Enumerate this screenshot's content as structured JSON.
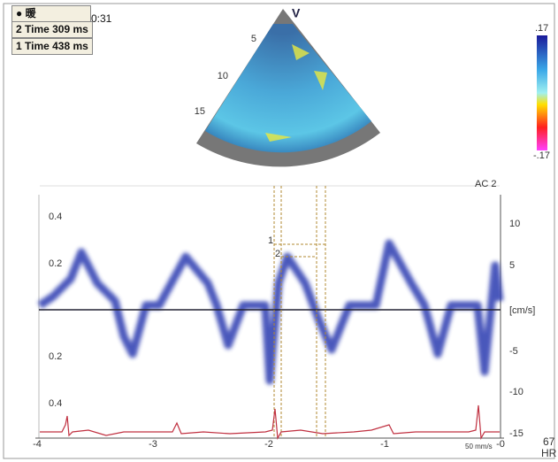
{
  "header": {
    "icon": "暖",
    "clock": "0:31",
    "times": [
      "2 Time 309 ms",
      "1 Time 438 ms"
    ]
  },
  "sector": {
    "probe": "V",
    "depths": [
      "5",
      "10",
      "15"
    ]
  },
  "colorbar": {
    "max": ".17",
    "min": "-.17"
  },
  "cursors": [
    "1",
    "2"
  ],
  "panel": {
    "channel": "AC 2",
    "left_axis": [
      "0.4",
      "0.2",
      "0.2",
      "0.4"
    ],
    "right_axis": [
      "10",
      "5",
      "[cm/s]",
      "-5",
      "-10",
      "-15"
    ],
    "x_axis": [
      "-4",
      "-3",
      "-2",
      "-1",
      "-0"
    ],
    "sweep": "50 mm/s",
    "hr_value": "67",
    "hr_label": "HR"
  }
}
